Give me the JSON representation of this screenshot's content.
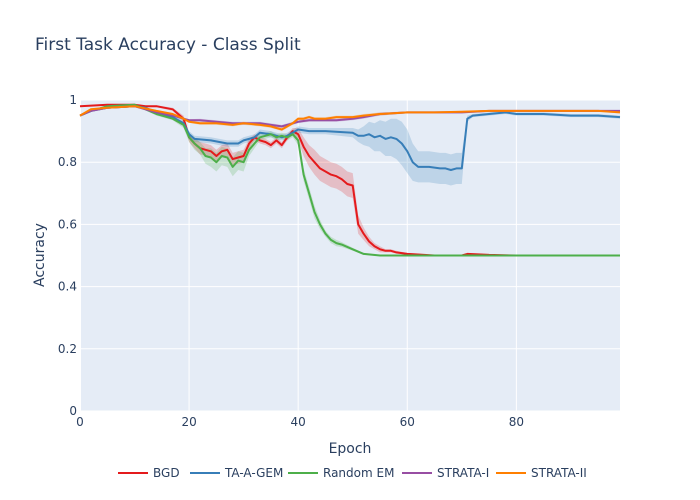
{
  "chart_data": {
    "type": "line",
    "title": "First Task Accuracy - Class Split",
    "xlabel": "Epoch",
    "ylabel": "Accuracy",
    "xlim": [
      0,
      99
    ],
    "ylim": [
      0,
      1
    ],
    "xticks": [
      0,
      20,
      40,
      60,
      80
    ],
    "yticks": [
      0,
      0.2,
      0.4,
      0.6,
      0.8,
      1
    ],
    "ytick_labels": [
      "0",
      "0.2",
      "0.4",
      "0.6",
      "0.8",
      "1"
    ],
    "grid": true,
    "background": "#e5ecf6",
    "legend_position": "bottom",
    "series": [
      {
        "name": "BGD",
        "color": "#e41a1c",
        "x": [
          0,
          5,
          10,
          12,
          14,
          17,
          19,
          20,
          21,
          22,
          23,
          24,
          25,
          26,
          27,
          28,
          29,
          30,
          31,
          32,
          33,
          34,
          35,
          36,
          37,
          38,
          39,
          40,
          41,
          42,
          43,
          44,
          45,
          46,
          47,
          48,
          49,
          50,
          51,
          52,
          53,
          54,
          55,
          56,
          57,
          58,
          60,
          65,
          70,
          71,
          75,
          80,
          90,
          99
        ],
        "y": [
          0.98,
          0.985,
          0.985,
          0.98,
          0.98,
          0.97,
          0.94,
          0.88,
          0.86,
          0.845,
          0.84,
          0.835,
          0.82,
          0.835,
          0.84,
          0.81,
          0.815,
          0.82,
          0.86,
          0.88,
          0.87,
          0.865,
          0.855,
          0.87,
          0.855,
          0.88,
          0.9,
          0.89,
          0.85,
          0.82,
          0.8,
          0.78,
          0.77,
          0.76,
          0.755,
          0.745,
          0.73,
          0.725,
          0.6,
          0.57,
          0.545,
          0.53,
          0.52,
          0.515,
          0.515,
          0.51,
          0.505,
          0.5,
          0.5,
          0.505,
          0.502,
          0.5,
          0.5,
          0.5
        ],
        "band_width": [
          0.002,
          0.002,
          0.002,
          0.002,
          0.003,
          0.005,
          0.01,
          0.015,
          0.015,
          0.02,
          0.02,
          0.02,
          0.02,
          0.02,
          0.02,
          0.02,
          0.02,
          0.02,
          0.015,
          0.01,
          0.01,
          0.01,
          0.01,
          0.01,
          0.01,
          0.01,
          0.01,
          0.02,
          0.03,
          0.035,
          0.04,
          0.04,
          0.04,
          0.04,
          0.04,
          0.04,
          0.04,
          0.04,
          0.03,
          0.02,
          0.015,
          0.01,
          0.01,
          0.005,
          0.005,
          0.005,
          0.003,
          0.002,
          0.002,
          0.002,
          0.002,
          0.002,
          0.002,
          0.002
        ]
      },
      {
        "name": "TA-A-GEM",
        "color": "#377eb8",
        "x": [
          0,
          2,
          5,
          10,
          12,
          14,
          17,
          19,
          20,
          21,
          24,
          27,
          28,
          29,
          30,
          31,
          32,
          33,
          35,
          37,
          38,
          40,
          42,
          45,
          50,
          51,
          52,
          53,
          54,
          55,
          56,
          57,
          58,
          59,
          60,
          61,
          62,
          64,
          66,
          67,
          68,
          69,
          70,
          71,
          72,
          75,
          78,
          80,
          85,
          90,
          95,
          99
        ],
        "y": [
          0.95,
          0.965,
          0.975,
          0.98,
          0.975,
          0.96,
          0.945,
          0.925,
          0.89,
          0.875,
          0.87,
          0.86,
          0.86,
          0.86,
          0.87,
          0.875,
          0.88,
          0.895,
          0.89,
          0.88,
          0.885,
          0.905,
          0.9,
          0.9,
          0.895,
          0.885,
          0.885,
          0.89,
          0.88,
          0.885,
          0.875,
          0.88,
          0.875,
          0.86,
          0.835,
          0.8,
          0.785,
          0.785,
          0.78,
          0.78,
          0.775,
          0.78,
          0.78,
          0.94,
          0.95,
          0.955,
          0.96,
          0.955,
          0.955,
          0.95,
          0.95,
          0.945
        ],
        "band_width": [
          0.003,
          0.003,
          0.003,
          0.003,
          0.003,
          0.005,
          0.005,
          0.01,
          0.01,
          0.01,
          0.01,
          0.01,
          0.01,
          0.01,
          0.01,
          0.01,
          0.01,
          0.01,
          0.01,
          0.01,
          0.01,
          0.01,
          0.01,
          0.01,
          0.015,
          0.02,
          0.03,
          0.04,
          0.045,
          0.05,
          0.055,
          0.06,
          0.065,
          0.07,
          0.07,
          0.06,
          0.05,
          0.05,
          0.05,
          0.05,
          0.05,
          0.05,
          0.05,
          0.01,
          0.005,
          0.005,
          0.005,
          0.005,
          0.005,
          0.005,
          0.005,
          0.005
        ]
      },
      {
        "name": "Random EM",
        "color": "#4daf4a",
        "x": [
          0,
          2,
          5,
          10,
          12,
          14,
          17,
          19,
          20,
          21,
          22,
          23,
          24,
          25,
          26,
          27,
          28,
          29,
          30,
          31,
          32,
          33,
          34,
          35,
          36,
          37,
          38,
          39,
          40,
          41,
          42,
          43,
          44,
          45,
          46,
          47,
          48,
          50,
          52,
          55,
          60,
          70,
          80,
          90,
          99
        ],
        "y": [
          0.95,
          0.965,
          0.98,
          0.985,
          0.97,
          0.955,
          0.94,
          0.92,
          0.88,
          0.86,
          0.845,
          0.82,
          0.815,
          0.8,
          0.82,
          0.815,
          0.785,
          0.805,
          0.8,
          0.84,
          0.86,
          0.88,
          0.885,
          0.89,
          0.88,
          0.885,
          0.88,
          0.89,
          0.87,
          0.76,
          0.7,
          0.64,
          0.6,
          0.57,
          0.55,
          0.54,
          0.535,
          0.52,
          0.505,
          0.5,
          0.5,
          0.5,
          0.5,
          0.5,
          0.5
        ],
        "band_width": [
          0.002,
          0.002,
          0.002,
          0.002,
          0.003,
          0.005,
          0.005,
          0.01,
          0.015,
          0.02,
          0.02,
          0.025,
          0.03,
          0.03,
          0.03,
          0.03,
          0.03,
          0.03,
          0.03,
          0.02,
          0.015,
          0.01,
          0.01,
          0.01,
          0.01,
          0.01,
          0.01,
          0.01,
          0.015,
          0.02,
          0.02,
          0.02,
          0.015,
          0.01,
          0.01,
          0.01,
          0.008,
          0.005,
          0.003,
          0.002,
          0.002,
          0.002,
          0.002,
          0.002,
          0.002
        ]
      },
      {
        "name": "STRATA-I",
        "color": "#984ea3",
        "x": [
          0,
          2,
          5,
          10,
          14,
          17,
          19,
          20,
          22,
          25,
          28,
          30,
          33,
          35,
          37,
          38,
          40,
          42,
          45,
          47,
          50,
          52,
          55,
          60,
          65,
          70,
          75,
          80,
          90,
          99
        ],
        "y": [
          0.95,
          0.965,
          0.975,
          0.98,
          0.96,
          0.95,
          0.94,
          0.935,
          0.935,
          0.93,
          0.925,
          0.925,
          0.925,
          0.92,
          0.915,
          0.92,
          0.93,
          0.935,
          0.935,
          0.935,
          0.94,
          0.945,
          0.955,
          0.96,
          0.96,
          0.96,
          0.965,
          0.965,
          0.965,
          0.965
        ],
        "band_width": [
          0.003,
          0.003,
          0.003,
          0.003,
          0.003,
          0.003,
          0.003,
          0.003,
          0.005,
          0.005,
          0.005,
          0.005,
          0.005,
          0.005,
          0.005,
          0.005,
          0.005,
          0.005,
          0.005,
          0.005,
          0.005,
          0.005,
          0.005,
          0.003,
          0.003,
          0.003,
          0.003,
          0.003,
          0.003,
          0.003
        ]
      },
      {
        "name": "STRATA-II",
        "color": "#ff7f00",
        "x": [
          0,
          2,
          5,
          10,
          14,
          17,
          19,
          20,
          22,
          25,
          28,
          30,
          33,
          35,
          36,
          37,
          38,
          39,
          40,
          41,
          42,
          43,
          45,
          47,
          50,
          52,
          55,
          60,
          65,
          70,
          75,
          80,
          85,
          90,
          95,
          99
        ],
        "y": [
          0.95,
          0.97,
          0.975,
          0.98,
          0.965,
          0.955,
          0.94,
          0.93,
          0.925,
          0.925,
          0.92,
          0.925,
          0.92,
          0.915,
          0.91,
          0.905,
          0.915,
          0.925,
          0.94,
          0.94,
          0.945,
          0.94,
          0.94,
          0.945,
          0.945,
          0.95,
          0.955,
          0.96,
          0.96,
          0.962,
          0.965,
          0.965,
          0.965,
          0.965,
          0.965,
          0.96
        ],
        "band_width": [
          0.003,
          0.003,
          0.003,
          0.003,
          0.003,
          0.003,
          0.003,
          0.003,
          0.005,
          0.005,
          0.005,
          0.005,
          0.005,
          0.005,
          0.005,
          0.005,
          0.005,
          0.005,
          0.005,
          0.005,
          0.005,
          0.005,
          0.005,
          0.005,
          0.005,
          0.005,
          0.005,
          0.003,
          0.003,
          0.003,
          0.003,
          0.003,
          0.003,
          0.003,
          0.003,
          0.003
        ]
      }
    ]
  }
}
